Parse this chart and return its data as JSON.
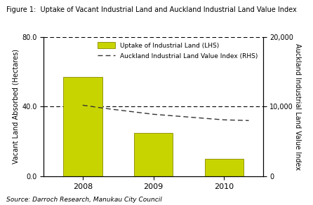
{
  "title": "Figure 1:  Uptake of Vacant Industrial Land and Auckland Industrial Land Value Index",
  "categories": [
    "2008",
    "2009",
    "2010"
  ],
  "bar_values": [
    57.0,
    25.0,
    10.0
  ],
  "bar_color": "#c8d400",
  "bar_edgecolor": "#888800",
  "lhs_label": "Vacant Land Absorbed (Hectares)",
  "rhs_label": "Auckland Industrial Land Value Index",
  "lhs_ylim": [
    0,
    80
  ],
  "lhs_yticks": [
    0.0,
    40.0,
    80.0
  ],
  "rhs_ylim": [
    0,
    20000
  ],
  "rhs_yticks": [
    0,
    10000,
    20000
  ],
  "rhs_yticklabels": [
    "0",
    "10,000",
    "20,000"
  ],
  "line_x_plot": [
    0.0,
    0.35,
    1.0,
    1.5,
    2.0,
    2.35
  ],
  "line_y_rhs": [
    10200,
    9700,
    8900,
    8500,
    8100,
    8000
  ],
  "dashed_line_color": "#333333",
  "legend_bar_label": "Uptake of Industrial Land (LHS)",
  "legend_line_label": "Auckland Industrial Land Value Index (RHS)",
  "source_text": "Source: Darroch Research, Manukau City Council",
  "figsize": [
    4.46,
    2.93
  ],
  "dpi": 100
}
